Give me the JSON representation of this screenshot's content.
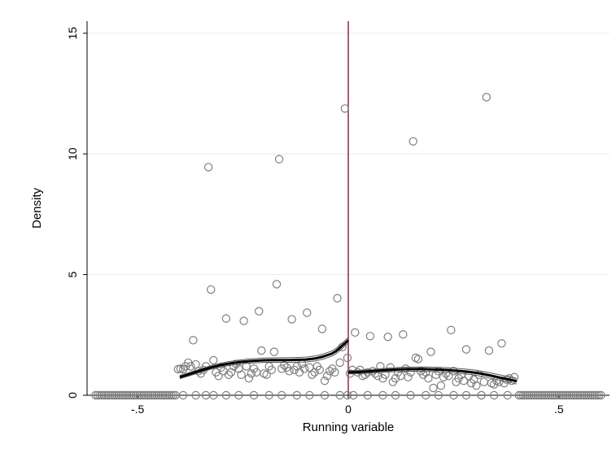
{
  "chart_data": {
    "type": "scatter",
    "title": "",
    "xlabel": "Running variable",
    "ylabel": "Density",
    "xlim": [
      -0.62,
      0.62
    ],
    "ylim": [
      0,
      15.5
    ],
    "x_ticks": [
      -0.5,
      0,
      0.5
    ],
    "x_tick_labels": [
      "-.5",
      "0",
      ".5"
    ],
    "y_ticks": [
      0,
      5,
      10,
      15
    ],
    "y_tick_labels": [
      "0",
      "5",
      "10",
      "15"
    ],
    "grid": true,
    "cutoff_x": 0,
    "colors": {
      "points": "#7f7f7f",
      "fit": "#000000",
      "cutoff": "#8b1a2b",
      "grid": "#e8ecef"
    },
    "series": [
      {
        "kind": "scatter",
        "points": [
          [
            -0.404,
            1.08
          ],
          [
            -0.398,
            1.1
          ],
          [
            -0.392,
            1.08
          ],
          [
            -0.386,
            1.2
          ],
          [
            -0.38,
            1.35
          ],
          [
            -0.374,
            1.2
          ],
          [
            -0.368,
            2.28
          ],
          [
            -0.362,
            1.28
          ],
          [
            -0.356,
            1.0
          ],
          [
            -0.35,
            0.9
          ],
          [
            -0.344,
            1.05
          ],
          [
            -0.338,
            1.2
          ],
          [
            -0.332,
            9.45
          ],
          [
            -0.326,
            4.38
          ],
          [
            -0.32,
            1.45
          ],
          [
            -0.314,
            0.95
          ],
          [
            -0.308,
            0.8
          ],
          [
            -0.302,
            1.15
          ],
          [
            -0.296,
            1.0
          ],
          [
            -0.29,
            3.18
          ],
          [
            -0.284,
            0.85
          ],
          [
            -0.278,
            0.95
          ],
          [
            -0.272,
            1.2
          ],
          [
            -0.266,
            1.3
          ],
          [
            -0.26,
            1.1
          ],
          [
            -0.254,
            0.85
          ],
          [
            -0.248,
            3.08
          ],
          [
            -0.242,
            1.2
          ],
          [
            -0.236,
            0.7
          ],
          [
            -0.23,
            0.9
          ],
          [
            -0.224,
            1.1
          ],
          [
            -0.218,
            0.95
          ],
          [
            -0.212,
            3.48
          ],
          [
            -0.206,
            1.85
          ],
          [
            -0.2,
            0.9
          ],
          [
            -0.194,
            0.85
          ],
          [
            -0.188,
            1.2
          ],
          [
            -0.182,
            1.05
          ],
          [
            -0.176,
            1.8
          ],
          [
            -0.17,
            4.6
          ],
          [
            -0.164,
            9.78
          ],
          [
            -0.158,
            1.1
          ],
          [
            -0.152,
            1.25
          ],
          [
            -0.146,
            1.15
          ],
          [
            -0.14,
            1.0
          ],
          [
            -0.134,
            3.15
          ],
          [
            -0.128,
            1.05
          ],
          [
            -0.122,
            1.2
          ],
          [
            -0.116,
            0.95
          ],
          [
            -0.11,
            1.3
          ],
          [
            -0.104,
            1.1
          ],
          [
            -0.098,
            3.42
          ],
          [
            -0.092,
            1.15
          ],
          [
            -0.086,
            0.85
          ],
          [
            -0.08,
            0.95
          ],
          [
            -0.074,
            1.2
          ],
          [
            -0.068,
            1.05
          ],
          [
            -0.062,
            2.75
          ],
          [
            -0.056,
            0.6
          ],
          [
            -0.05,
            0.8
          ],
          [
            -0.044,
            1.0
          ],
          [
            -0.038,
            1.1
          ],
          [
            -0.032,
            0.95
          ],
          [
            -0.026,
            4.02
          ],
          [
            -0.02,
            1.35
          ],
          [
            -0.014,
            2.0
          ],
          [
            -0.008,
            11.88
          ],
          [
            -0.002,
            1.55
          ],
          [
            0.004,
            0.9
          ],
          [
            0.01,
            1.05
          ],
          [
            0.016,
            2.6
          ],
          [
            0.022,
            0.95
          ],
          [
            0.028,
            1.05
          ],
          [
            0.034,
            0.8
          ],
          [
            0.04,
            0.85
          ],
          [
            0.046,
            0.95
          ],
          [
            0.052,
            2.45
          ],
          [
            0.058,
            1.0
          ],
          [
            0.064,
            0.9
          ],
          [
            0.07,
            0.8
          ],
          [
            0.076,
            1.2
          ],
          [
            0.082,
            0.7
          ],
          [
            0.088,
            0.85
          ],
          [
            0.094,
            2.42
          ],
          [
            0.1,
            1.15
          ],
          [
            0.106,
            0.55
          ],
          [
            0.112,
            0.7
          ],
          [
            0.118,
            0.95
          ],
          [
            0.124,
            0.8
          ],
          [
            0.13,
            2.52
          ],
          [
            0.136,
            1.1
          ],
          [
            0.142,
            0.75
          ],
          [
            0.148,
            0.95
          ],
          [
            0.154,
            10.52
          ],
          [
            0.16,
            1.55
          ],
          [
            0.166,
            1.5
          ],
          [
            0.172,
            1.0
          ],
          [
            0.178,
            0.85
          ],
          [
            0.184,
            0.95
          ],
          [
            0.19,
            0.7
          ],
          [
            0.196,
            1.8
          ],
          [
            0.202,
            0.3
          ],
          [
            0.208,
            0.85
          ],
          [
            0.214,
            1.0
          ],
          [
            0.22,
            0.4
          ],
          [
            0.226,
            0.75
          ],
          [
            0.232,
            0.9
          ],
          [
            0.238,
            0.8
          ],
          [
            0.244,
            2.7
          ],
          [
            0.25,
            1.0
          ],
          [
            0.256,
            0.55
          ],
          [
            0.262,
            0.7
          ],
          [
            0.268,
            0.85
          ],
          [
            0.274,
            0.6
          ],
          [
            0.28,
            1.9
          ],
          [
            0.286,
            0.8
          ],
          [
            0.292,
            0.5
          ],
          [
            0.298,
            0.65
          ],
          [
            0.304,
            0.4
          ],
          [
            0.31,
            0.85
          ],
          [
            0.316,
            0.0
          ],
          [
            0.322,
            0.55
          ],
          [
            0.328,
            12.35
          ],
          [
            0.334,
            1.85
          ],
          [
            0.34,
            0.5
          ],
          [
            0.346,
            0.45
          ],
          [
            0.352,
            0.6
          ],
          [
            0.358,
            0.55
          ],
          [
            0.364,
            2.15
          ],
          [
            0.37,
            0.5
          ],
          [
            0.376,
            0.65
          ],
          [
            0.382,
            0.7
          ],
          [
            0.388,
            0.6
          ],
          [
            0.394,
            0.75
          ]
        ],
        "zero_points_x": [
          -0.6,
          -0.595,
          -0.59,
          -0.585,
          -0.58,
          -0.575,
          -0.57,
          -0.565,
          -0.56,
          -0.555,
          -0.55,
          -0.545,
          -0.54,
          -0.535,
          -0.53,
          -0.525,
          -0.52,
          -0.515,
          -0.51,
          -0.505,
          -0.5,
          -0.495,
          -0.49,
          -0.485,
          -0.48,
          -0.475,
          -0.47,
          -0.465,
          -0.46,
          -0.455,
          -0.45,
          -0.445,
          -0.44,
          -0.435,
          -0.43,
          -0.425,
          -0.42,
          -0.415,
          -0.41,
          -0.392,
          -0.362,
          -0.338,
          -0.32,
          -0.29,
          -0.26,
          -0.224,
          -0.188,
          -0.158,
          -0.122,
          -0.092,
          -0.056,
          -0.02,
          -0.002,
          0.012,
          0.046,
          0.082,
          0.112,
          0.148,
          0.184,
          0.214,
          0.25,
          0.28,
          0.316,
          0.346,
          0.378,
          0.405,
          0.41,
          0.415,
          0.42,
          0.425,
          0.43,
          0.435,
          0.44,
          0.445,
          0.45,
          0.455,
          0.46,
          0.465,
          0.47,
          0.475,
          0.48,
          0.485,
          0.49,
          0.495,
          0.5,
          0.505,
          0.51,
          0.515,
          0.52,
          0.525,
          0.53,
          0.535,
          0.54,
          0.545,
          0.55,
          0.555,
          0.56,
          0.565,
          0.57,
          0.575,
          0.58,
          0.585,
          0.59,
          0.595,
          0.6
        ]
      },
      {
        "kind": "line",
        "segment": "left",
        "x": [
          -0.4,
          -0.38,
          -0.36,
          -0.34,
          -0.32,
          -0.3,
          -0.28,
          -0.26,
          -0.24,
          -0.22,
          -0.2,
          -0.18,
          -0.16,
          -0.14,
          -0.12,
          -0.1,
          -0.08,
          -0.06,
          -0.04,
          -0.03,
          -0.02,
          -0.01,
          0.0
        ],
        "y": [
          0.75,
          0.86,
          0.97,
          1.08,
          1.18,
          1.26,
          1.32,
          1.37,
          1.41,
          1.43,
          1.45,
          1.46,
          1.46,
          1.46,
          1.47,
          1.48,
          1.52,
          1.6,
          1.72,
          1.82,
          1.96,
          2.12,
          2.28
        ]
      },
      {
        "kind": "line",
        "segment": "right",
        "x": [
          0.0,
          0.02,
          0.04,
          0.06,
          0.08,
          0.1,
          0.12,
          0.14,
          0.16,
          0.18,
          0.2,
          0.22,
          0.24,
          0.26,
          0.28,
          0.3,
          0.32,
          0.34,
          0.36,
          0.38,
          0.4
        ],
        "y": [
          0.95,
          0.96,
          0.98,
          1.0,
          1.03,
          1.05,
          1.07,
          1.08,
          1.08,
          1.08,
          1.07,
          1.06,
          1.04,
          1.01,
          0.98,
          0.94,
          0.88,
          0.81,
          0.73,
          0.66,
          0.58
        ]
      }
    ]
  }
}
